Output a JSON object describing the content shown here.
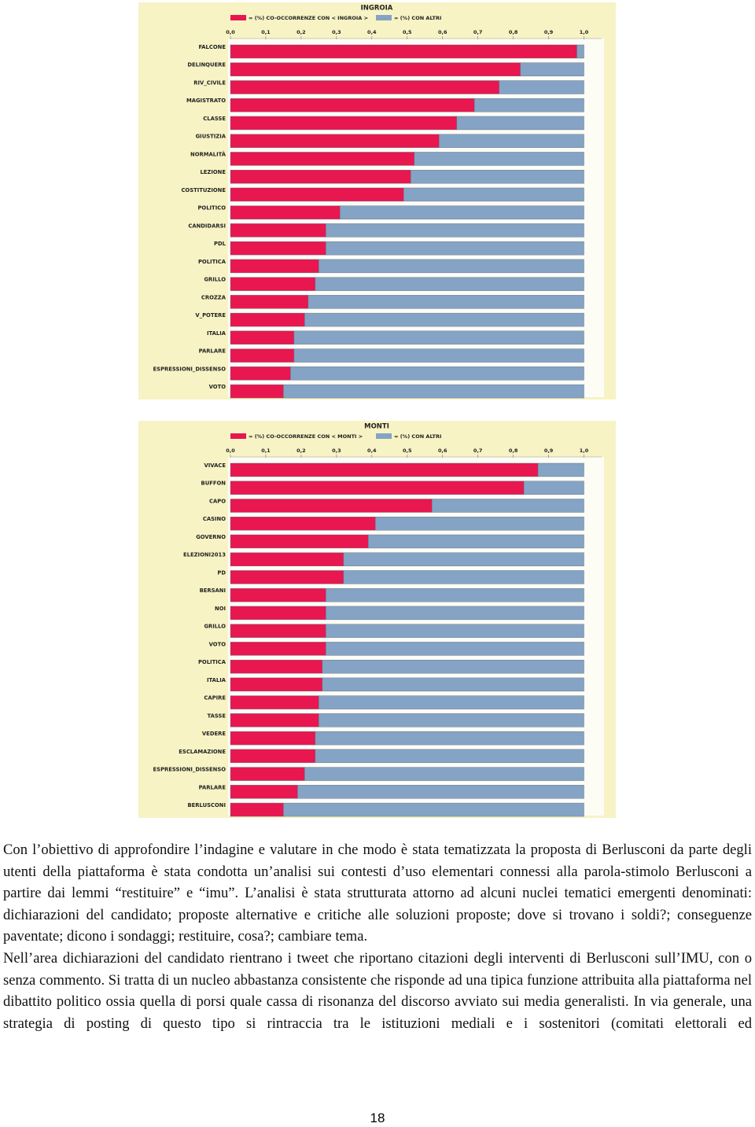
{
  "chart_data": [
    {
      "type": "bar",
      "stacked": true,
      "title": "INGROIA",
      "xlim": [
        0,
        1.05
      ],
      "xticks": [
        {
          "value": 0,
          "label": "0,0"
        },
        {
          "value": 0.1,
          "label": "0,1"
        },
        {
          "value": 0.2,
          "label": "0,2"
        },
        {
          "value": 0.3,
          "label": "0,3"
        },
        {
          "value": 0.4,
          "label": "0,4"
        },
        {
          "value": 0.5,
          "label": "0,5"
        },
        {
          "value": 0.6,
          "label": "0,6"
        },
        {
          "value": 0.7,
          "label": "0,7"
        },
        {
          "value": 0.8,
          "label": "0,8"
        },
        {
          "value": 0.9,
          "label": "0,9"
        },
        {
          "value": 1,
          "label": "1,0"
        }
      ],
      "categories": [
        "FALCONE",
        "DELINQUERE",
        "RIV_CIVILE",
        "MAGISTRATO",
        "CLASSE",
        "GIUSTIZIA",
        "NORMALITÀ",
        "LEZIONE",
        "COSTITUZIONE",
        "POLITICO",
        "CANDIDARSI",
        "PDL",
        "POLITICA",
        "GRILLO",
        "CROZZA",
        "V_POTERE",
        "ITALIA",
        "PARLARE",
        "ESPRESSIONI_DISSENSO",
        "VOTO"
      ],
      "series": [
        {
          "name": "= (%) CO-OCCORRENZE CON < INGROIA >",
          "color": "#e8174f",
          "values": [
            0.98,
            0.82,
            0.76,
            0.69,
            0.64,
            0.59,
            0.52,
            0.51,
            0.49,
            0.31,
            0.27,
            0.27,
            0.25,
            0.24,
            0.22,
            0.21,
            0.18,
            0.18,
            0.17,
            0.15
          ]
        },
        {
          "name": "= (%) CON ALTRI",
          "color": "#85a3c4",
          "values": [
            0.02,
            0.18,
            0.24,
            0.31,
            0.36,
            0.41,
            0.48,
            0.49,
            0.51,
            0.69,
            0.73,
            0.73,
            0.75,
            0.76,
            0.78,
            0.79,
            0.82,
            0.82,
            0.83,
            0.85
          ]
        }
      ],
      "grid": false
    },
    {
      "type": "bar",
      "stacked": true,
      "title": "MONTI",
      "xlim": [
        0,
        1.05
      ],
      "xticks": [
        {
          "value": 0,
          "label": "0,0"
        },
        {
          "value": 0.1,
          "label": "0,1"
        },
        {
          "value": 0.2,
          "label": "0,2"
        },
        {
          "value": 0.3,
          "label": "0,3"
        },
        {
          "value": 0.4,
          "label": "0,4"
        },
        {
          "value": 0.5,
          "label": "0,5"
        },
        {
          "value": 0.6,
          "label": "0,6"
        },
        {
          "value": 0.7,
          "label": "0,7"
        },
        {
          "value": 0.8,
          "label": "0,8"
        },
        {
          "value": 0.9,
          "label": "0,9"
        },
        {
          "value": 1,
          "label": "1,0"
        }
      ],
      "categories": [
        "VIVACE",
        "BUFFON",
        "CAPO",
        "CASINO",
        "GOVERNO",
        "ELEZIONI2013",
        "PD",
        "BERSANI",
        "NOI",
        "GRILLO",
        "VOTO",
        "POLITICA",
        "ITALIA",
        "CAPIRE",
        "TASSE",
        "VEDERE",
        "ESCLAMAZIONE",
        "ESPRESSIONI_DISSENSO",
        "PARLARE",
        "BERLUSCONI"
      ],
      "series": [
        {
          "name": "= (%) CO-OCCORRENZE CON < MONTI >",
          "color": "#e8174f",
          "values": [
            0.87,
            0.83,
            0.57,
            0.41,
            0.39,
            0.32,
            0.32,
            0.27,
            0.27,
            0.27,
            0.27,
            0.26,
            0.26,
            0.25,
            0.25,
            0.24,
            0.24,
            0.21,
            0.19,
            0.15
          ]
        },
        {
          "name": "= (%) CON ALTRI",
          "color": "#85a3c4",
          "values": [
            0.13,
            0.17,
            0.43,
            0.59,
            0.61,
            0.68,
            0.68,
            0.73,
            0.73,
            0.73,
            0.73,
            0.74,
            0.74,
            0.75,
            0.75,
            0.76,
            0.76,
            0.79,
            0.81,
            0.85
          ]
        }
      ],
      "grid": false
    }
  ],
  "paragraphs": [
    "Con l’obiettivo di approfondire l’indagine e valutare in che modo è stata tematizzata la proposta di Berlusconi da parte degli utenti della piattaforma è stata condotta un’analisi sui contesti d’uso elementari connessi alla parola-stimolo Berlusconi a partire dai lemmi “restituire” e “imu”. L’analisi è stata strutturata attorno ad alcuni nuclei tematici emergenti denominati: dichiarazioni del candidato; proposte alternative e critiche alle soluzioni proposte; dove si trovano i soldi?; conseguenze paventate; dicono i sondaggi; restituire, cosa?; cambiare tema.",
    "Nell’area dichiarazioni del candidato rientrano i tweet che riportano citazioni degli interventi di Berlusconi sull’IMU, con o senza commento. Si tratta di un nucleo abbastanza consistente che risponde ad una tipica funzione attribuita alla piattaforma nel dibattito politico ossia quella di porsi quale cassa di risonanza del discorso avviato sui media generalisti. In via generale, una strategia di posting di questo tipo si rintraccia tra le istituzioni mediali e i sostenitori (comitati elettorali ed"
  ],
  "page_number": "18"
}
